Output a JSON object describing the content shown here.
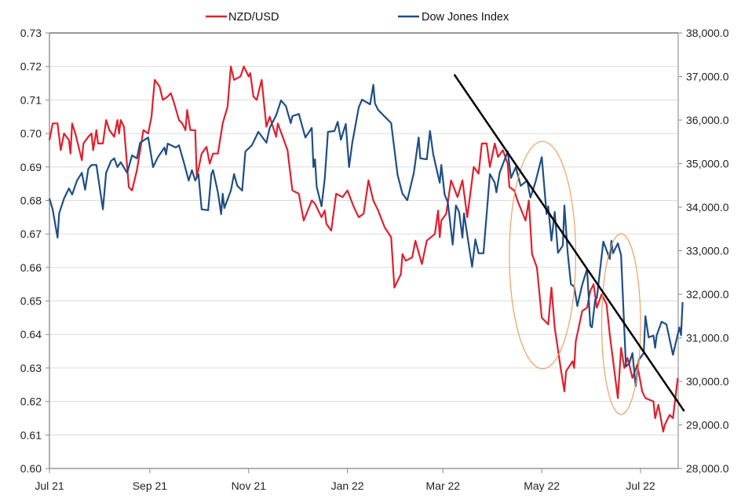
{
  "chart_data": {
    "type": "line",
    "title": "",
    "legend_position": "top",
    "grid": true,
    "x_axis": {
      "type": "date",
      "range": [
        "2021-07-01",
        "2022-07-27"
      ],
      "tick_dates": [
        "2021-07-01",
        "2021-09-01",
        "2021-11-01",
        "2022-01-01",
        "2022-03-01",
        "2022-05-01",
        "2022-07-01"
      ],
      "tick_labels": [
        "Jul 21",
        "Sep 21",
        "Nov 21",
        "Jan 22",
        "Mar 22",
        "May 22",
        "Jul 22"
      ]
    },
    "y_left": {
      "range": [
        0.6,
        0.73
      ],
      "ticks": [
        0.6,
        0.61,
        0.62,
        0.63,
        0.64,
        0.65,
        0.66,
        0.67,
        0.68,
        0.69,
        0.7,
        0.71,
        0.72,
        0.73
      ],
      "tick_labels": [
        "0.60",
        "0.61",
        "0.62",
        "0.63",
        "0.64",
        "0.65",
        "0.66",
        "0.67",
        "0.68",
        "0.69",
        "0.70",
        "0.71",
        "0.72",
        "0.73"
      ]
    },
    "y_right": {
      "range": [
        28000,
        38000
      ],
      "ticks": [
        28000,
        29000,
        30000,
        31000,
        32000,
        33000,
        34000,
        35000,
        36000,
        37000,
        38000
      ],
      "tick_labels": [
        "28,000.0",
        "29,000.0",
        "30,000.0",
        "31,000.0",
        "32,000.0",
        "33,000.0",
        "34,000.0",
        "35,000.0",
        "36,000.0",
        "37,000.0",
        "38,000.0"
      ]
    },
    "series": [
      {
        "name": "NZD/USD",
        "axis": "left",
        "color": "#e0202e",
        "x": [
          "2021-07-01",
          "2021-07-03",
          "2021-07-06",
          "2021-07-08",
          "2021-07-10",
          "2021-07-13",
          "2021-07-14",
          "2021-07-15",
          "2021-07-17",
          "2021-07-18",
          "2021-07-21",
          "2021-07-22",
          "2021-07-25",
          "2021-07-27",
          "2021-07-28",
          "2021-07-30",
          "2021-07-31",
          "2021-08-03",
          "2021-08-05",
          "2021-08-07",
          "2021-08-10",
          "2021-08-12",
          "2021-08-13",
          "2021-08-14",
          "2021-08-16",
          "2021-08-19",
          "2021-08-21",
          "2021-08-24",
          "2021-08-28",
          "2021-08-31",
          "2021-09-02",
          "2021-09-04",
          "2021-09-07",
          "2021-09-09",
          "2021-09-12",
          "2021-09-14",
          "2021-09-16",
          "2021-09-19",
          "2021-09-21",
          "2021-09-23",
          "2021-09-24",
          "2021-09-26",
          "2021-09-29",
          "2021-09-30",
          "2021-10-03",
          "2021-10-06",
          "2021-10-08",
          "2021-10-10",
          "2021-10-13",
          "2021-10-16",
          "2021-10-19",
          "2021-10-21",
          "2021-10-23",
          "2021-10-27",
          "2021-10-29",
          "2021-11-01",
          "2021-11-02",
          "2021-11-04",
          "2021-11-06",
          "2021-11-09",
          "2021-11-12",
          "2021-11-14",
          "2021-11-18",
          "2021-11-19",
          "2021-11-25",
          "2021-11-27",
          "2021-11-28",
          "2021-12-02",
          "2021-12-05",
          "2021-12-10",
          "2021-12-12",
          "2021-12-16",
          "2021-12-18",
          "2021-12-19",
          "2021-12-22",
          "2021-12-25",
          "2021-12-29",
          "2022-01-01",
          "2022-01-05",
          "2022-01-08",
          "2022-01-11",
          "2022-01-14",
          "2022-01-17",
          "2022-01-20",
          "2022-01-24",
          "2022-01-28",
          "2022-01-30",
          "2022-02-03",
          "2022-02-04",
          "2022-02-06",
          "2022-02-10",
          "2022-02-12",
          "2022-02-16",
          "2022-02-19",
          "2022-02-24",
          "2022-02-26",
          "2022-02-27",
          "2022-02-28",
          "2022-03-03",
          "2022-03-06",
          "2022-03-10",
          "2022-03-13",
          "2022-03-16",
          "2022-03-20",
          "2022-03-23",
          "2022-03-25",
          "2022-03-28",
          "2022-03-30",
          "2022-04-02",
          "2022-04-04",
          "2022-04-07",
          "2022-04-10",
          "2022-04-11",
          "2022-04-14",
          "2022-04-16",
          "2022-04-21",
          "2022-04-23",
          "2022-04-25",
          "2022-04-28",
          "2022-05-01",
          "2022-05-05",
          "2022-05-07",
          "2022-05-09",
          "2022-05-13",
          "2022-05-15",
          "2022-05-16",
          "2022-05-20",
          "2022-05-21",
          "2022-05-22",
          "2022-05-26",
          "2022-05-29",
          "2022-05-31",
          "2022-06-02",
          "2022-06-04",
          "2022-06-07",
          "2022-06-10",
          "2022-06-12",
          "2022-06-17",
          "2022-06-19",
          "2022-06-21",
          "2022-06-23",
          "2022-06-26",
          "2022-06-29",
          "2022-07-02",
          "2022-07-04",
          "2022-07-09",
          "2022-07-10",
          "2022-07-12",
          "2022-07-15",
          "2022-07-16",
          "2022-07-19",
          "2022-07-21",
          "2022-07-24"
        ],
        "y": [
          0.698,
          0.703,
          0.703,
          0.695,
          0.7,
          0.698,
          0.694,
          0.703,
          0.7,
          0.698,
          0.692,
          0.697,
          0.699,
          0.7,
          0.695,
          0.701,
          0.697,
          0.697,
          0.704,
          0.701,
          0.699,
          0.704,
          0.7,
          0.704,
          0.702,
          0.684,
          0.683,
          0.689,
          0.701,
          0.7,
          0.705,
          0.716,
          0.714,
          0.71,
          0.711,
          0.712,
          0.709,
          0.704,
          0.703,
          0.701,
          0.707,
          0.701,
          0.701,
          0.687,
          0.694,
          0.696,
          0.691,
          0.694,
          0.694,
          0.703,
          0.708,
          0.72,
          0.716,
          0.717,
          0.72,
          0.717,
          0.718,
          0.711,
          0.71,
          0.716,
          0.702,
          0.705,
          0.699,
          0.703,
          0.695,
          0.687,
          0.683,
          0.682,
          0.674,
          0.68,
          0.679,
          0.675,
          0.677,
          0.673,
          0.671,
          0.682,
          0.681,
          0.683,
          0.678,
          0.675,
          0.676,
          0.686,
          0.68,
          0.677,
          0.672,
          0.669,
          0.654,
          0.658,
          0.664,
          0.662,
          0.663,
          0.668,
          0.661,
          0.668,
          0.67,
          0.677,
          0.669,
          0.674,
          0.676,
          0.686,
          0.681,
          0.686,
          0.675,
          0.69,
          0.688,
          0.697,
          0.697,
          0.69,
          0.697,
          0.693,
          0.695,
          0.691,
          0.684,
          0.683,
          0.68,
          0.674,
          0.68,
          0.664,
          0.66,
          0.645,
          0.643,
          0.654,
          0.642,
          0.629,
          0.623,
          0.629,
          0.632,
          0.63,
          0.638,
          0.647,
          0.648,
          0.653,
          0.655,
          0.648,
          0.652,
          0.649,
          0.64,
          0.621,
          0.636,
          0.63,
          0.633,
          0.627,
          0.631,
          0.623,
          0.621,
          0.62,
          0.615,
          0.619,
          0.611,
          0.613,
          0.616,
          0.615,
          0.627
        ]
      },
      {
        "name": "Dow Jones Index",
        "axis": "right",
        "color": "#1f4e85",
        "x": [
          "2021-07-01",
          "2021-07-03",
          "2021-07-06",
          "2021-07-07",
          "2021-07-10",
          "2021-07-13",
          "2021-07-15",
          "2021-07-18",
          "2021-07-21",
          "2021-07-23",
          "2021-07-25",
          "2021-07-27",
          "2021-07-30",
          "2021-08-03",
          "2021-08-05",
          "2021-08-08",
          "2021-08-10",
          "2021-08-12",
          "2021-08-14",
          "2021-08-18",
          "2021-08-21",
          "2021-08-24",
          "2021-08-26",
          "2021-08-31",
          "2021-09-03",
          "2021-09-06",
          "2021-09-10",
          "2021-09-11",
          "2021-09-12",
          "2021-09-17",
          "2021-09-19",
          "2021-09-22",
          "2021-09-25",
          "2021-09-27",
          "2021-09-29",
          "2021-10-01",
          "2021-10-03",
          "2021-10-07",
          "2021-10-09",
          "2021-10-10",
          "2021-10-13",
          "2021-10-15",
          "2021-10-16",
          "2021-10-17",
          "2021-10-21",
          "2021-10-23",
          "2021-10-25",
          "2021-10-28",
          "2021-10-30",
          "2021-11-03",
          "2021-11-07",
          "2021-11-12",
          "2021-11-14",
          "2021-11-18",
          "2021-11-21",
          "2021-11-24",
          "2021-11-27",
          "2021-11-28",
          "2021-12-02",
          "2021-12-06",
          "2021-12-10",
          "2021-12-11",
          "2021-12-12",
          "2021-12-13",
          "2021-12-16",
          "2021-12-18",
          "2021-12-20",
          "2021-12-24",
          "2021-12-26",
          "2021-12-28",
          "2021-12-31",
          "2022-01-02",
          "2022-01-04",
          "2022-01-08",
          "2022-01-10",
          "2022-01-15",
          "2022-01-17",
          "2022-01-18",
          "2022-01-20",
          "2022-01-28",
          "2022-02-01",
          "2022-02-04",
          "2022-02-07",
          "2022-02-11",
          "2022-02-14",
          "2022-02-15",
          "2022-02-19",
          "2022-02-21",
          "2022-02-23",
          "2022-02-27",
          "2022-02-28",
          "2022-03-02",
          "2022-03-04",
          "2022-03-07",
          "2022-03-09",
          "2022-03-11",
          "2022-03-13",
          "2022-03-14",
          "2022-03-19",
          "2022-03-21",
          "2022-03-23",
          "2022-03-26",
          "2022-03-30",
          "2022-04-02",
          "2022-04-03",
          "2022-04-05",
          "2022-04-10",
          "2022-04-12",
          "2022-04-15",
          "2022-04-18",
          "2022-04-22",
          "2022-04-24",
          "2022-04-27",
          "2022-05-01",
          "2022-05-04",
          "2022-05-05",
          "2022-05-07",
          "2022-05-09",
          "2022-05-11",
          "2022-05-14",
          "2022-05-15",
          "2022-05-17",
          "2022-05-19",
          "2022-05-21",
          "2022-05-23",
          "2022-05-26",
          "2022-05-29",
          "2022-05-31",
          "2022-06-01",
          "2022-06-03",
          "2022-06-04",
          "2022-06-08",
          "2022-06-12",
          "2022-06-13",
          "2022-06-14",
          "2022-06-17",
          "2022-06-19",
          "2022-06-22",
          "2022-06-24",
          "2022-06-26",
          "2022-06-28",
          "2022-06-30",
          "2022-07-03",
          "2022-07-04",
          "2022-07-06",
          "2022-07-09",
          "2022-07-10",
          "2022-07-11",
          "2022-07-14",
          "2022-07-17",
          "2022-07-21",
          "2022-07-25",
          "2022-07-26",
          "2022-07-27"
        ],
        "y": [
          34200,
          33950,
          33300,
          33860,
          34200,
          34430,
          34290,
          34610,
          34790,
          34400,
          34880,
          34970,
          34970,
          33950,
          34790,
          35060,
          35120,
          34920,
          35030,
          34790,
          35190,
          35120,
          35480,
          35600,
          34920,
          35150,
          35370,
          35210,
          35460,
          35370,
          35420,
          35030,
          34610,
          34850,
          34610,
          34760,
          33950,
          33930,
          34760,
          34850,
          34340,
          33840,
          34310,
          33980,
          34380,
          34760,
          34490,
          34380,
          35280,
          35420,
          35730,
          35480,
          35820,
          36110,
          36450,
          36320,
          35930,
          36090,
          36140,
          35600,
          35820,
          34920,
          35100,
          34470,
          34020,
          34650,
          35730,
          35750,
          35960,
          35550,
          35910,
          34920,
          35480,
          36290,
          36470,
          36360,
          36810,
          36380,
          36230,
          35930,
          34740,
          34310,
          34160,
          34790,
          35600,
          35120,
          35100,
          35750,
          35210,
          34560,
          34970,
          34290,
          34110,
          33140,
          34040,
          33890,
          33300,
          33860,
          32630,
          33260,
          32940,
          32940,
          34760,
          34560,
          34340,
          34790,
          35280,
          34670,
          34920,
          34490,
          34610,
          34220,
          34560,
          35150,
          33840,
          34020,
          33230,
          33890,
          32950,
          33120,
          34040,
          32950,
          32230,
          32180,
          31730,
          32220,
          32580,
          31280,
          31240,
          31870,
          31910,
          33210,
          32810,
          33230,
          32940,
          33170,
          32900,
          30340,
          30410,
          30650,
          29890,
          30500,
          30650,
          31500,
          31010,
          31050,
          30770,
          31060,
          31370,
          31310,
          30610,
          31240,
          31060,
          31820
        ]
      }
    ],
    "annotations": {
      "trendline": {
        "color": "#000000",
        "axis": "right",
        "start": [
          "2022-03-08",
          37045
        ],
        "end": [
          "2022-07-28",
          29315
        ]
      },
      "ellipses": [
        {
          "color": "#f0a060",
          "axis": "right",
          "x_range": [
            "2022-04-11",
            "2022-05-22"
          ],
          "y_range": [
            30290,
            35510
          ]
        },
        {
          "color": "#f0a060",
          "axis": "right",
          "x_range": [
            "2022-06-07",
            "2022-07-01"
          ],
          "y_range": [
            29240,
            33390
          ]
        }
      ]
    }
  }
}
